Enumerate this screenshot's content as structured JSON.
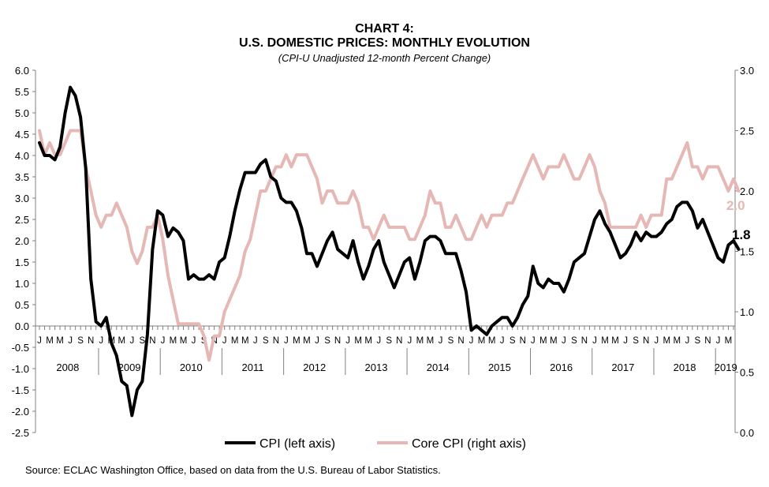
{
  "header": {
    "title": "CHART 4:",
    "title2": "U.S. DOMESTIC PRICES: MONTHLY EVOLUTION",
    "subtitle": "(CPI-U Unadjusted 12-month Percent Change)"
  },
  "source": "Source: ECLAC Washington Office, based on data from the U.S. Bureau of Labor Statistics.",
  "colors": {
    "cpi": "#000000",
    "core": "#e6b8b5"
  },
  "chart_data": {
    "type": "line",
    "title": "CHART 4: U.S. DOMESTIC PRICES: MONTHLY EVOLUTION",
    "subtitle": "(CPI-U Unadjusted 12-month Percent Change)",
    "years": [
      "2008",
      "2009",
      "2010",
      "2011",
      "2012",
      "2013",
      "2014",
      "2015",
      "2016",
      "2017",
      "2018",
      "2019"
    ],
    "month_letters": [
      "J",
      "M",
      "M",
      "J",
      "S",
      "N"
    ],
    "y_left": {
      "min": -2.5,
      "max": 6.0,
      "step": 0.5,
      "ticks": [
        "6.0",
        "5.5",
        "5.0",
        "4.5",
        "4.0",
        "3.5",
        "3.0",
        "2.5",
        "2.0",
        "1.5",
        "1.0",
        "0.5",
        "0.0",
        "-0.5",
        "-1.0",
        "-1.5",
        "-2.0",
        "-2.5"
      ]
    },
    "y_right": {
      "min": 0.0,
      "max": 3.0,
      "step": 0.5,
      "ticks": [
        "3.0",
        "2.5",
        "2.0",
        "1.5",
        "1.0",
        "0.5",
        "0.0"
      ]
    },
    "legend": {
      "position": "bottom",
      "cpi": "CPI (left axis)",
      "core": "Core CPI (right axis)"
    },
    "end_labels": {
      "cpi": "1.8",
      "core": "2.0"
    },
    "series": [
      {
        "name": "CPI (left axis)",
        "axis": "left",
        "start": "2008-01",
        "values": [
          4.3,
          4.0,
          4.0,
          3.9,
          4.2,
          5.0,
          5.6,
          5.4,
          4.9,
          3.7,
          1.1,
          0.1,
          0.0,
          0.2,
          -0.4,
          -0.7,
          -1.3,
          -1.4,
          -2.1,
          -1.5,
          -1.3,
          -0.2,
          1.8,
          2.7,
          2.6,
          2.1,
          2.3,
          2.2,
          2.0,
          1.1,
          1.2,
          1.1,
          1.1,
          1.2,
          1.1,
          1.5,
          1.6,
          2.1,
          2.7,
          3.2,
          3.6,
          3.6,
          3.6,
          3.8,
          3.9,
          3.5,
          3.4,
          3.0,
          2.9,
          2.9,
          2.7,
          2.3,
          1.7,
          1.7,
          1.4,
          1.7,
          2.0,
          2.2,
          1.8,
          1.7,
          1.6,
          2.0,
          1.5,
          1.1,
          1.4,
          1.8,
          2.0,
          1.5,
          1.2,
          0.9,
          1.2,
          1.5,
          1.6,
          1.1,
          1.5,
          2.0,
          2.1,
          2.1,
          2.0,
          1.7,
          1.7,
          1.7,
          1.3,
          0.8,
          -0.1,
          0.0,
          -0.1,
          -0.2,
          0.0,
          0.1,
          0.2,
          0.2,
          0.0,
          0.2,
          0.5,
          0.7,
          1.4,
          1.0,
          0.9,
          1.1,
          1.0,
          1.0,
          0.8,
          1.1,
          1.5,
          1.6,
          1.7,
          2.1,
          2.5,
          2.7,
          2.4,
          2.2,
          1.9,
          1.6,
          1.7,
          1.9,
          2.2,
          2.0,
          2.2,
          2.1,
          2.1,
          2.2,
          2.4,
          2.5,
          2.8,
          2.9,
          2.9,
          2.7,
          2.3,
          2.5,
          2.2,
          1.9,
          1.6,
          1.5,
          1.9,
          2.0,
          1.8
        ]
      },
      {
        "name": "Core CPI (right axis)",
        "axis": "right",
        "start": "2008-01",
        "values": [
          2.5,
          2.3,
          2.4,
          2.3,
          2.3,
          2.4,
          2.5,
          2.5,
          2.5,
          2.2,
          2.0,
          1.8,
          1.7,
          1.8,
          1.8,
          1.9,
          1.8,
          1.7,
          1.5,
          1.4,
          1.5,
          1.7,
          1.7,
          1.8,
          1.6,
          1.3,
          1.1,
          0.9,
          0.9,
          0.9,
          0.9,
          0.9,
          0.8,
          0.6,
          0.8,
          0.8,
          1.0,
          1.1,
          1.2,
          1.3,
          1.5,
          1.6,
          1.8,
          2.0,
          2.0,
          2.1,
          2.2,
          2.2,
          2.3,
          2.2,
          2.3,
          2.3,
          2.3,
          2.2,
          2.1,
          1.9,
          2.0,
          2.0,
          1.9,
          1.9,
          1.9,
          2.0,
          1.9,
          1.7,
          1.7,
          1.6,
          1.7,
          1.8,
          1.7,
          1.7,
          1.7,
          1.7,
          1.6,
          1.6,
          1.7,
          1.8,
          2.0,
          1.9,
          1.9,
          1.7,
          1.7,
          1.8,
          1.7,
          1.6,
          1.6,
          1.7,
          1.8,
          1.7,
          1.8,
          1.8,
          1.8,
          1.9,
          1.9,
          2.0,
          2.1,
          2.2,
          2.3,
          2.2,
          2.1,
          2.2,
          2.2,
          2.2,
          2.3,
          2.2,
          2.1,
          2.1,
          2.2,
          2.3,
          2.2,
          2.0,
          1.9,
          1.7,
          1.7,
          1.7,
          1.7,
          1.7,
          1.7,
          1.8,
          1.7,
          1.8,
          1.8,
          1.8,
          2.1,
          2.1,
          2.2,
          2.3,
          2.4,
          2.2,
          2.2,
          2.1,
          2.2,
          2.2,
          2.2,
          2.1,
          2.0,
          2.1,
          2.0
        ]
      }
    ]
  }
}
